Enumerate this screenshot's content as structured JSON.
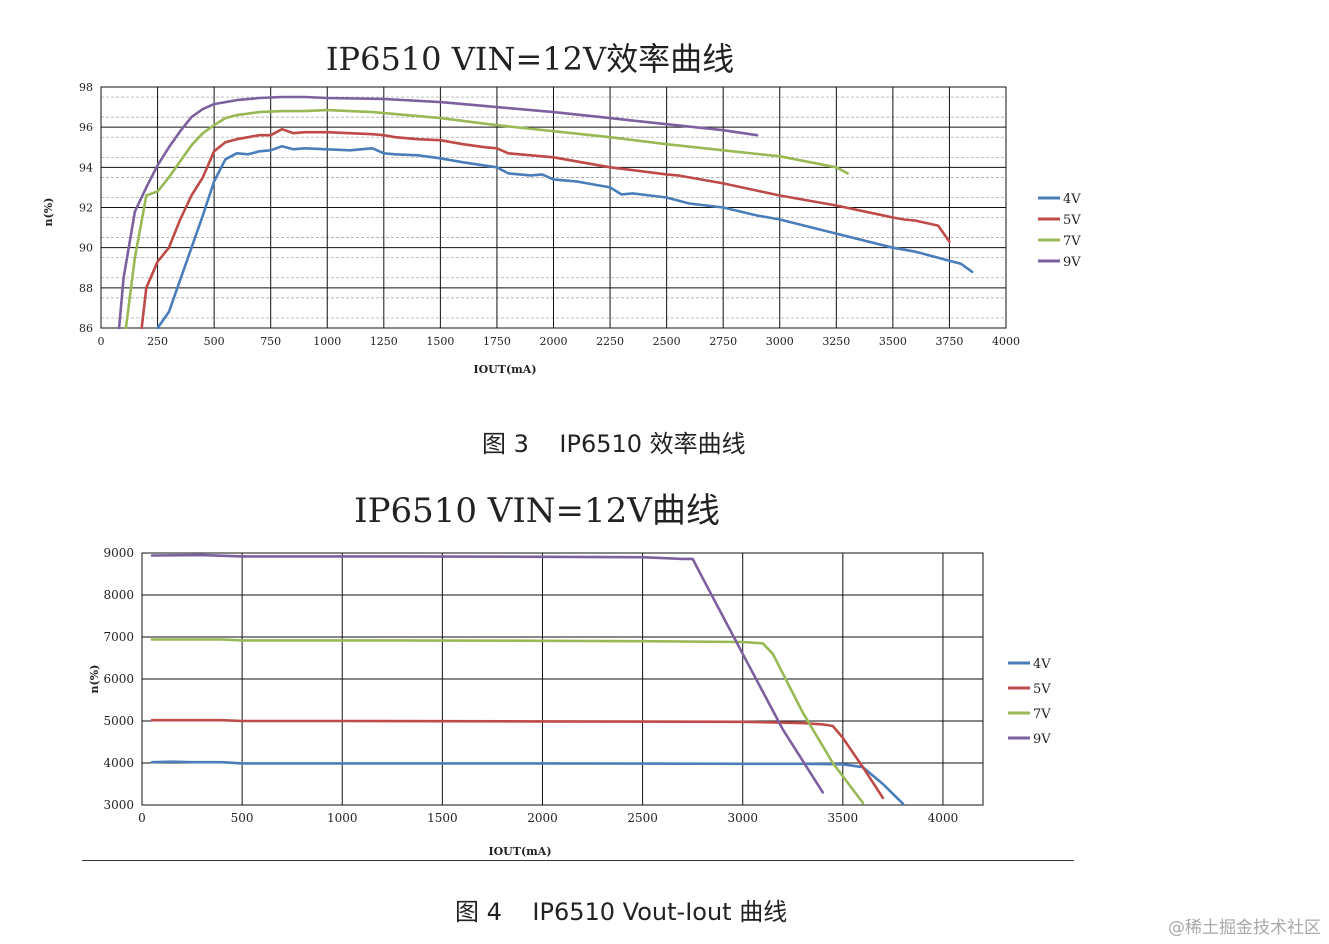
{
  "charts": {
    "chart1_caption": "图 3    IP6510 效率曲线",
    "chart2_caption": "图 4    IP6510 Vout-Iout 曲线"
  },
  "watermark": "@稀土掘金技术社区",
  "chart_data": [
    {
      "type": "line",
      "title": "IP6510 VIN=12V效率曲线",
      "xlabel": "IOUT(mA)",
      "ylabel": "n(%)",
      "xlim": [
        0,
        4000
      ],
      "ylim": [
        86,
        98
      ],
      "xticks": [
        0,
        250,
        500,
        750,
        1000,
        1250,
        1500,
        1750,
        2000,
        2250,
        2500,
        2750,
        3000,
        3250,
        3500,
        3750,
        4000
      ],
      "yticks": [
        86,
        88,
        90,
        92,
        94,
        96,
        98
      ],
      "grid": "on",
      "legend_position": "right",
      "series": [
        {
          "name": "4V",
          "color": "#4a7ebb",
          "x": [
            250,
            300,
            350,
            400,
            450,
            500,
            550,
            600,
            650,
            700,
            750,
            800,
            850,
            900,
            1000,
            1100,
            1200,
            1250,
            1300,
            1400,
            1500,
            1600,
            1750,
            1800,
            1900,
            1950,
            2000,
            2100,
            2250,
            2300,
            2350,
            2500,
            2600,
            2750,
            2900,
            3000,
            3250,
            3500,
            3600,
            3700,
            3800,
            3850
          ],
          "y": [
            85.9,
            86.8,
            88.4,
            90,
            91.6,
            93.3,
            94.4,
            94.7,
            94.65,
            94.8,
            94.85,
            95.05,
            94.9,
            94.95,
            94.9,
            94.85,
            94.95,
            94.7,
            94.65,
            94.6,
            94.45,
            94.25,
            94,
            93.7,
            93.6,
            93.65,
            93.4,
            93.3,
            93.0,
            92.65,
            92.7,
            92.5,
            92.2,
            92.0,
            91.6,
            91.4,
            90.7,
            90.0,
            89.8,
            89.5,
            89.2,
            88.8
          ]
        },
        {
          "name": "5V",
          "color": "#be4b48",
          "x": [
            180,
            200,
            250,
            300,
            350,
            400,
            450,
            500,
            550,
            600,
            650,
            700,
            750,
            800,
            850,
            900,
            1000,
            1100,
            1200,
            1250,
            1300,
            1400,
            1500,
            1600,
            1700,
            1750,
            1800,
            2000,
            2250,
            2500,
            2550,
            2750,
            3000,
            3250,
            3500,
            3550,
            3600,
            3700,
            3750
          ],
          "y": [
            86.0,
            88.0,
            89.3,
            90.0,
            91.4,
            92.6,
            93.5,
            94.8,
            95.25,
            95.4,
            95.5,
            95.6,
            95.6,
            95.9,
            95.7,
            95.75,
            95.75,
            95.7,
            95.65,
            95.6,
            95.5,
            95.4,
            95.35,
            95.15,
            95.0,
            94.95,
            94.7,
            94.5,
            94.0,
            93.65,
            93.6,
            93.2,
            92.6,
            92.1,
            91.5,
            91.4,
            91.35,
            91.1,
            90.3
          ]
        },
        {
          "name": "7V",
          "color": "#98b954",
          "x": [
            110,
            150,
            200,
            250,
            300,
            350,
            400,
            450,
            500,
            550,
            600,
            700,
            800,
            900,
            1000,
            1100,
            1200,
            1250,
            1500,
            1750,
            2000,
            2250,
            2500,
            2750,
            3000,
            3250,
            3300
          ],
          "y": [
            86.0,
            89.5,
            92.6,
            92.8,
            93.5,
            94.3,
            95.1,
            95.7,
            96.1,
            96.45,
            96.6,
            96.75,
            96.8,
            96.8,
            96.85,
            96.8,
            96.75,
            96.7,
            96.45,
            96.1,
            95.8,
            95.5,
            95.15,
            94.85,
            94.55,
            94.0,
            93.7
          ]
        },
        {
          "name": "9V",
          "color": "#7d60a0",
          "x": [
            80,
            100,
            150,
            200,
            250,
            300,
            350,
            400,
            450,
            500,
            600,
            700,
            800,
            900,
            1000,
            1250,
            1500,
            1750,
            2000,
            2250,
            2500,
            2750,
            2900
          ],
          "y": [
            86.0,
            88.5,
            91.8,
            93.0,
            94.1,
            95.0,
            95.8,
            96.5,
            96.9,
            97.15,
            97.35,
            97.45,
            97.5,
            97.5,
            97.45,
            97.4,
            97.25,
            97.0,
            96.75,
            96.45,
            96.15,
            95.85,
            95.6
          ]
        }
      ]
    },
    {
      "type": "line",
      "title": "IP6510 VIN=12V曲线",
      "xlabel": "IOUT(mA)",
      "ylabel": "n(%)",
      "xlim": [
        0,
        4200
      ],
      "ylim": [
        3000,
        9000
      ],
      "xticks": [
        0,
        500,
        1000,
        1500,
        2000,
        2500,
        3000,
        3500,
        4000
      ],
      "yticks": [
        3000,
        4000,
        5000,
        6000,
        7000,
        8000,
        9000
      ],
      "grid": "on",
      "legend_position": "right",
      "series": [
        {
          "name": "4V",
          "color": "#4a7ebb",
          "x": [
            50,
            150,
            250,
            400,
            500,
            1000,
            2000,
            3000,
            3300,
            3500,
            3600,
            3700,
            3800
          ],
          "y": [
            4020,
            4030,
            4020,
            4020,
            3990,
            3990,
            3990,
            3980,
            3980,
            3970,
            3900,
            3500,
            3030
          ]
        },
        {
          "name": "5V",
          "color": "#be4b48",
          "x": [
            50,
            400,
            500,
            1000,
            2000,
            3000,
            3300,
            3400,
            3450,
            3500,
            3600,
            3700
          ],
          "y": [
            5020,
            5020,
            5000,
            5000,
            4990,
            4980,
            4950,
            4920,
            4880,
            4600,
            3900,
            3170
          ]
        },
        {
          "name": "7V",
          "color": "#98b954",
          "x": [
            50,
            400,
            500,
            1000,
            2000,
            2500,
            3000,
            3100,
            3150,
            3300,
            3450,
            3600
          ],
          "y": [
            6940,
            6940,
            6920,
            6920,
            6910,
            6900,
            6880,
            6850,
            6600,
            5200,
            4000,
            3050
          ]
        },
        {
          "name": "9V",
          "color": "#7d60a0",
          "x": [
            50,
            300,
            500,
            1000,
            2000,
            2500,
            2700,
            2750,
            2800,
            3000,
            3200,
            3400
          ],
          "y": [
            8940,
            8950,
            8920,
            8920,
            8910,
            8900,
            8860,
            8860,
            8400,
            6600,
            4800,
            3300
          ]
        }
      ]
    }
  ]
}
